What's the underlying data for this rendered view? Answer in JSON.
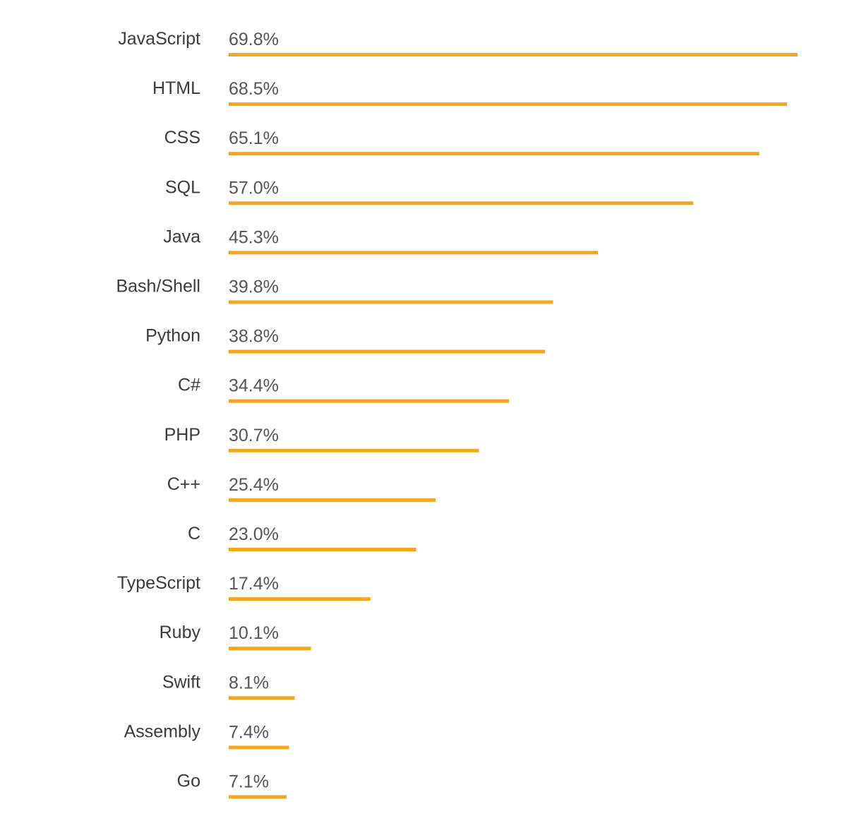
{
  "chart_data": {
    "type": "bar",
    "orientation": "horizontal",
    "categories": [
      "JavaScript",
      "HTML",
      "CSS",
      "SQL",
      "Java",
      "Bash/Shell",
      "Python",
      "C#",
      "PHP",
      "C++",
      "C",
      "TypeScript",
      "Ruby",
      "Swift",
      "Assembly",
      "Go"
    ],
    "values": [
      69.8,
      68.5,
      65.1,
      57.0,
      45.3,
      39.8,
      38.8,
      34.4,
      30.7,
      25.4,
      23.0,
      17.4,
      10.1,
      8.1,
      7.4,
      7.1
    ],
    "value_labels": [
      "69.8%",
      "68.5%",
      "65.1%",
      "57.0%",
      "45.3%",
      "39.8%",
      "38.8%",
      "34.4%",
      "30.7%",
      "25.4%",
      "23.0%",
      "17.4%",
      "10.1%",
      "8.1%",
      "7.4%",
      "7.1%"
    ],
    "title": "",
    "xlabel": "",
    "ylabel": "",
    "xlim": [
      0,
      69.8
    ],
    "grid": false,
    "legend": "none",
    "bar_color": "#f4a623",
    "label_color": "#3b3b3b",
    "value_color": "#555555"
  }
}
